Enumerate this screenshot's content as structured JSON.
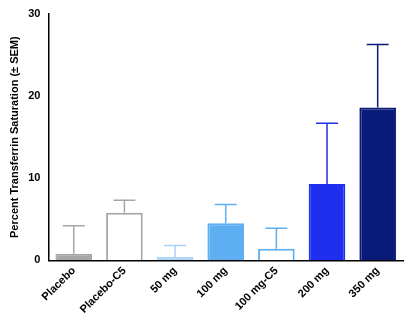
{
  "chart_data": {
    "type": "bar",
    "y_label": "Percent Transferrin Saturation (± SEM)",
    "categories": [
      "Placebo",
      "Placebo-C5",
      "50 mg",
      "100 mg",
      "100 mg-C5",
      "200 mg",
      "350 mg"
    ],
    "values": [
      0.8,
      5.8,
      0.4,
      4.5,
      1.4,
      9.3,
      18.6
    ],
    "errors": [
      3.4,
      1.5,
      1.4,
      2.3,
      2.5,
      7.4,
      7.7
    ],
    "colors": [
      "#a6a6a6",
      "#a6a6a6",
      "#a9d2f5",
      "#5eaef2",
      "#5eaef2",
      "#1f2ff0",
      "#0a1a78"
    ],
    "ylim": [
      0,
      30
    ],
    "yticks": [
      0,
      10,
      20,
      30
    ],
    "grid": false
  }
}
